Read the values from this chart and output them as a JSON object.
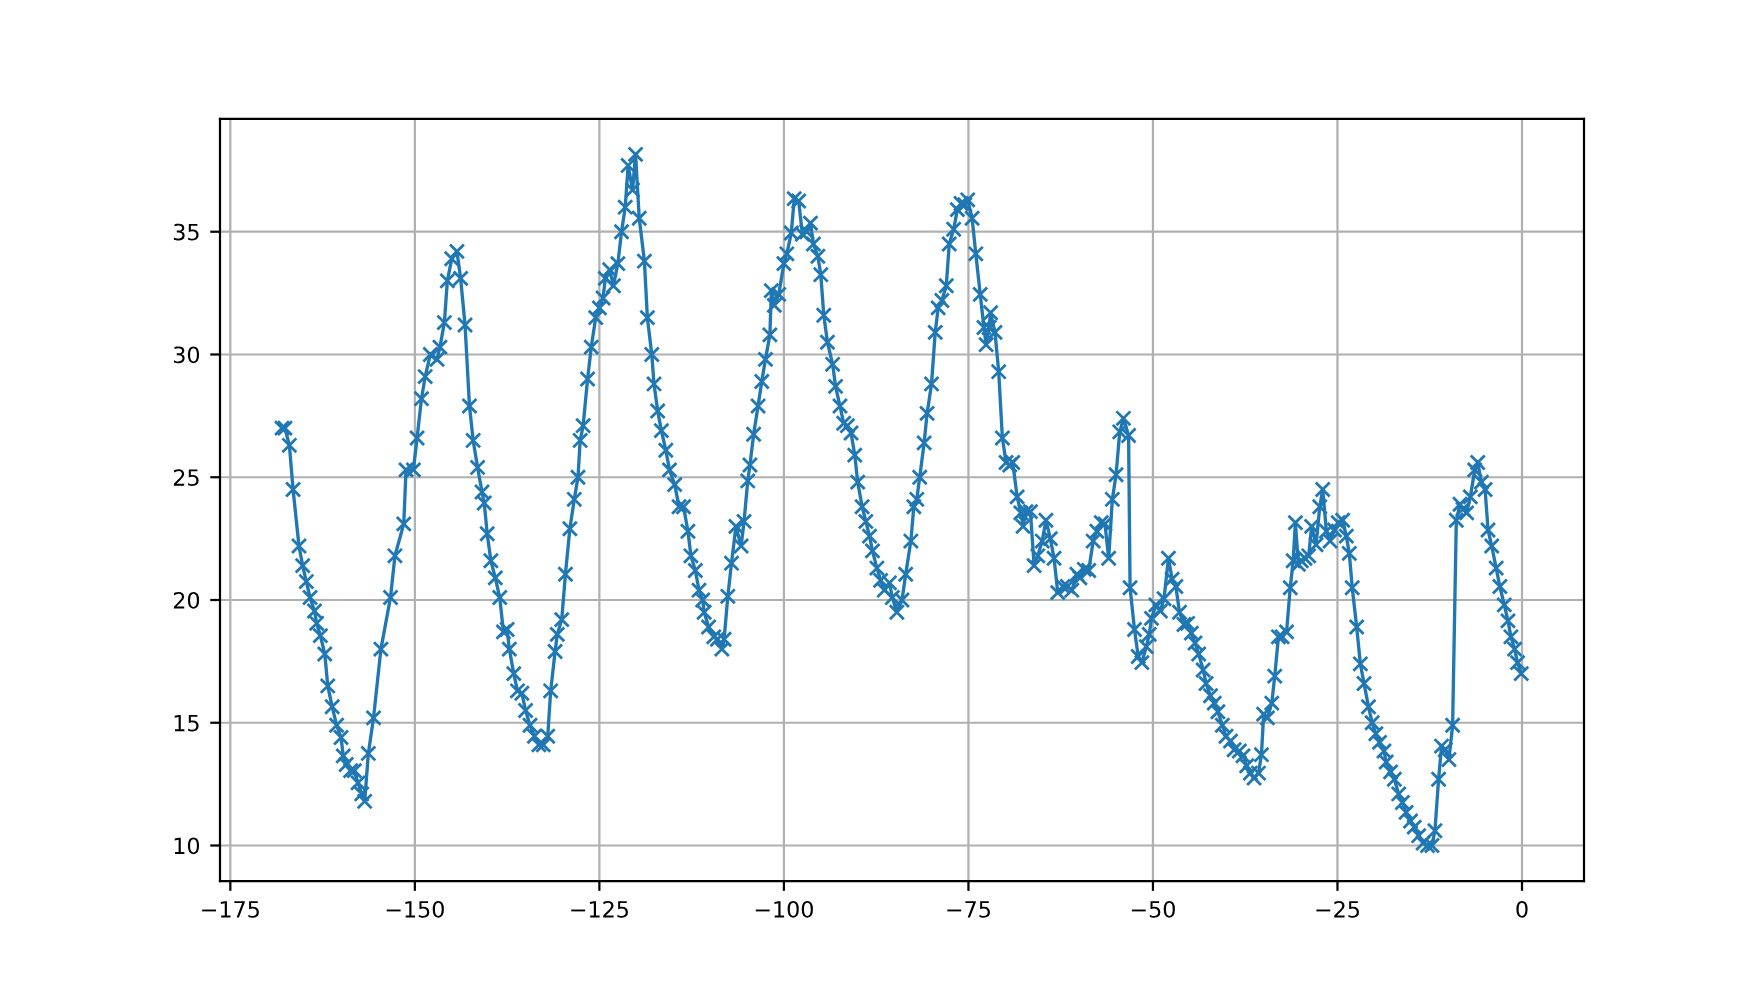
{
  "chart_data": {
    "type": "line",
    "marker": "cross",
    "line_style": "solid",
    "grid": true,
    "xlim": [
      -176.4,
      8.4
    ],
    "ylim": [
      8.55,
      39.6
    ],
    "xticks": [
      {
        "value": -175,
        "label": "−175"
      },
      {
        "value": -150,
        "label": "−150"
      },
      {
        "value": -125,
        "label": "−125"
      },
      {
        "value": -100,
        "label": "−100"
      },
      {
        "value": -75,
        "label": "−75"
      },
      {
        "value": -50,
        "label": "−50"
      },
      {
        "value": -25,
        "label": "−25"
      },
      0
    ],
    "yticks": [
      10,
      15,
      20,
      25,
      30,
      35
    ],
    "series": [
      {
        "color": "#1f77b4",
        "x": [
          -168.0,
          -167.6,
          -167.0,
          -166.5,
          -165.7,
          -165.2,
          -164.7,
          -164.2,
          -163.6,
          -163.3,
          -162.8,
          -162.2,
          -161.8,
          -161.2,
          -160.6,
          -160.0,
          -159.7,
          -159.3,
          -158.7,
          -158.2,
          -157.7,
          -157.2,
          -156.8,
          -156.3,
          -155.6,
          -154.6,
          -153.3,
          -152.7,
          -151.5,
          -151.2,
          -150.2,
          -149.7,
          -149.1,
          -148.6,
          -147.9,
          -147.0,
          -146.6,
          -146.0,
          -145.6,
          -145.0,
          -144.3,
          -143.8,
          -143.2,
          -142.6,
          -142.1,
          -141.5,
          -140.9,
          -140.6,
          -140.2,
          -139.7,
          -139.1,
          -138.5,
          -138.0,
          -137.5,
          -137.2,
          -136.6,
          -136.1,
          -135.5,
          -135.0,
          -134.4,
          -133.8,
          -133.2,
          -132.6,
          -132.0,
          -131.6,
          -131.0,
          -130.7,
          -130.1,
          -129.6,
          -129.0,
          -128.4,
          -127.9,
          -127.6,
          -127.2,
          -126.6,
          -126.1,
          -125.5,
          -125.0,
          -124.5,
          -124.2,
          -123.6,
          -123.1,
          -122.5,
          -122.0,
          -121.5,
          -121.1,
          -120.5,
          -120.1,
          -119.6,
          -118.9,
          -118.5,
          -117.9,
          -117.6,
          -117.1,
          -116.6,
          -116.0,
          -115.5,
          -114.8,
          -114.2,
          -113.6,
          -113.0,
          -112.6,
          -112.0,
          -111.5,
          -111.0,
          -110.8,
          -110.2,
          -109.5,
          -109.0,
          -108.4,
          -108.1,
          -107.6,
          -107.1,
          -106.5,
          -105.8,
          -105.4,
          -104.9,
          -104.6,
          -104.1,
          -103.5,
          -103.0,
          -102.5,
          -101.9,
          -101.7,
          -101.3,
          -100.7,
          -100.0,
          -99.6,
          -99.0,
          -98.6,
          -98.0,
          -97.5,
          -96.9,
          -96.4,
          -96.0,
          -95.4,
          -95.0,
          -94.6,
          -94.1,
          -93.4,
          -93.0,
          -92.4,
          -91.9,
          -91.4,
          -90.9,
          -90.4,
          -90.0,
          -89.4,
          -88.9,
          -88.4,
          -88.0,
          -87.4,
          -86.9,
          -86.4,
          -85.7,
          -85.3,
          -84.7,
          -84.0,
          -83.5,
          -82.8,
          -82.4,
          -82.0,
          -81.6,
          -81.0,
          -80.6,
          -80.0,
          -79.5,
          -79.1,
          -78.6,
          -78.0,
          -77.6,
          -77.0,
          -76.5,
          -76.0,
          -75.5,
          -75.1,
          -74.5,
          -74.0,
          -73.4,
          -72.9,
          -72.6,
          -72.2,
          -72.0,
          -71.4,
          -70.9,
          -70.4,
          -69.9,
          -69.4,
          -69.0,
          -68.4,
          -67.9,
          -67.6,
          -67.2,
          -66.6,
          -66.1,
          -65.6,
          -65.0,
          -64.5,
          -63.9,
          -63.4,
          -62.9,
          -62.2,
          -61.6,
          -61.0,
          -60.3,
          -59.9,
          -59.3,
          -58.7,
          -58.1,
          -57.6,
          -57.0,
          -56.5,
          -56.0,
          -55.5,
          -55.0,
          -54.5,
          -54.0,
          -53.3,
          -53.1,
          -52.5,
          -52.0,
          -51.5,
          -50.9,
          -50.5,
          -50.2,
          -49.6,
          -49.0,
          -48.5,
          -47.9,
          -47.4,
          -46.9,
          -46.4,
          -45.8,
          -45.3,
          -44.8,
          -44.3,
          -43.8,
          -43.2,
          -42.8,
          -42.2,
          -41.7,
          -41.2,
          -40.6,
          -40.1,
          -39.5,
          -39.0,
          -38.3,
          -37.8,
          -37.3,
          -36.8,
          -36.3,
          -35.7,
          -35.3,
          -35.0,
          -34.5,
          -33.9,
          -33.5,
          -33.0,
          -32.5,
          -31.9,
          -31.4,
          -31.0,
          -30.7,
          -30.3,
          -29.9,
          -29.4,
          -28.9,
          -28.5,
          -27.9,
          -27.4,
          -27.0,
          -26.5,
          -26.0,
          -25.4,
          -24.9,
          -24.3,
          -23.8,
          -23.4,
          -23.0,
          -22.4,
          -21.9,
          -21.4,
          -20.8,
          -20.3,
          -19.8,
          -19.3,
          -18.7,
          -18.4,
          -17.8,
          -17.3,
          -16.7,
          -16.2,
          -15.7,
          -15.1,
          -14.6,
          -14.0,
          -13.4,
          -12.8,
          -12.2,
          -11.8,
          -11.3,
          -10.9,
          -10.4,
          -9.9,
          -9.4,
          -8.9,
          -8.4,
          -8.0,
          -7.5,
          -7.0,
          -6.4,
          -6.0,
          -5.5,
          -5.0,
          -4.6,
          -4.1,
          -3.5,
          -3.0,
          -2.4,
          -1.9,
          -1.5,
          -1.0,
          -0.6,
          -0.1
        ],
        "values": [
          27.0,
          27.0,
          26.3,
          24.5,
          22.2,
          21.4,
          20.75,
          20.1,
          19.55,
          19.05,
          18.55,
          17.8,
          16.5,
          15.65,
          14.9,
          14.4,
          13.65,
          13.3,
          13.05,
          13.05,
          12.55,
          12.1,
          11.8,
          13.75,
          15.2,
          18.0,
          20.1,
          21.8,
          23.1,
          25.3,
          25.3,
          26.6,
          28.2,
          29.1,
          30.0,
          29.8,
          30.3,
          31.3,
          33.0,
          33.9,
          34.2,
          33.1,
          31.2,
          27.9,
          26.5,
          25.4,
          24.4,
          23.95,
          22.7,
          21.6,
          20.9,
          20.1,
          18.7,
          18.8,
          18.0,
          17.0,
          16.3,
          16.2,
          15.5,
          14.9,
          14.45,
          14.1,
          14.1,
          14.45,
          16.3,
          17.9,
          18.6,
          19.2,
          21.05,
          22.9,
          24.1,
          25.0,
          26.5,
          27.1,
          29.0,
          30.3,
          31.5,
          31.9,
          32.3,
          33.1,
          33.45,
          32.8,
          33.7,
          35.0,
          36.0,
          37.7,
          36.7,
          38.15,
          35.55,
          33.8,
          31.5,
          30.0,
          28.8,
          27.7,
          26.9,
          26.1,
          25.3,
          24.7,
          23.8,
          23.8,
          22.8,
          21.8,
          21.2,
          20.4,
          20.0,
          19.5,
          18.9,
          18.5,
          18.4,
          18.0,
          18.4,
          20.15,
          21.5,
          23.0,
          22.2,
          23.2,
          24.85,
          25.5,
          26.75,
          27.9,
          28.9,
          29.8,
          30.8,
          32.6,
          32.0,
          32.45,
          33.7,
          34.1,
          34.95,
          36.35,
          36.25,
          34.9,
          35.0,
          35.35,
          34.5,
          34.0,
          33.25,
          31.6,
          30.5,
          29.6,
          28.7,
          27.9,
          27.2,
          27.1,
          26.8,
          25.9,
          24.8,
          23.8,
          23.2,
          22.6,
          22.0,
          21.3,
          20.8,
          20.4,
          20.7,
          20.1,
          19.5,
          20.0,
          21.05,
          22.4,
          23.8,
          24.1,
          25.0,
          26.4,
          27.6,
          28.8,
          30.9,
          31.9,
          32.2,
          32.8,
          34.5,
          35.1,
          35.9,
          36.15,
          36.1,
          36.3,
          35.55,
          34.1,
          32.45,
          31.1,
          30.4,
          31.1,
          31.7,
          30.9,
          29.3,
          26.6,
          25.6,
          25.5,
          25.6,
          24.2,
          23.55,
          23.0,
          23.6,
          23.6,
          21.4,
          21.8,
          22.4,
          23.25,
          22.5,
          21.7,
          20.3,
          20.55,
          20.55,
          20.4,
          21.05,
          20.9,
          21.25,
          21.2,
          22.4,
          22.8,
          23.15,
          23.1,
          21.7,
          24.1,
          25.1,
          26.85,
          27.4,
          26.7,
          20.5,
          18.8,
          17.7,
          17.45,
          18.1,
          18.6,
          19.25,
          19.8,
          19.55,
          20.05,
          21.7,
          20.85,
          20.55,
          19.5,
          19.0,
          19.05,
          18.65,
          18.25,
          17.8,
          17.15,
          16.6,
          16.1,
          15.8,
          15.45,
          14.9,
          14.45,
          14.25,
          13.9,
          13.85,
          13.65,
          13.25,
          12.95,
          12.75,
          12.95,
          13.7,
          15.35,
          15.2,
          15.8,
          16.9,
          18.5,
          18.5,
          18.7,
          20.5,
          21.6,
          23.15,
          21.45,
          21.6,
          21.7,
          21.8,
          23.0,
          22.25,
          23.8,
          24.5,
          22.8,
          22.4,
          22.85,
          23.15,
          23.25,
          22.6,
          21.9,
          20.5,
          18.9,
          17.4,
          16.6,
          15.65,
          15.0,
          14.55,
          14.2,
          13.85,
          13.4,
          13.0,
          12.7,
          12.1,
          11.75,
          11.35,
          11.0,
          10.75,
          10.4,
          10.1,
          10.0,
          10.0,
          10.6,
          12.7,
          14.05,
          13.9,
          13.5,
          14.9,
          23.25,
          23.9,
          23.7,
          23.55,
          24.2,
          25.3,
          25.6,
          24.8,
          24.5,
          22.85,
          22.2,
          21.3,
          20.55,
          19.8,
          19.15,
          18.5,
          18.0,
          17.45,
          17.0
        ]
      }
    ]
  }
}
